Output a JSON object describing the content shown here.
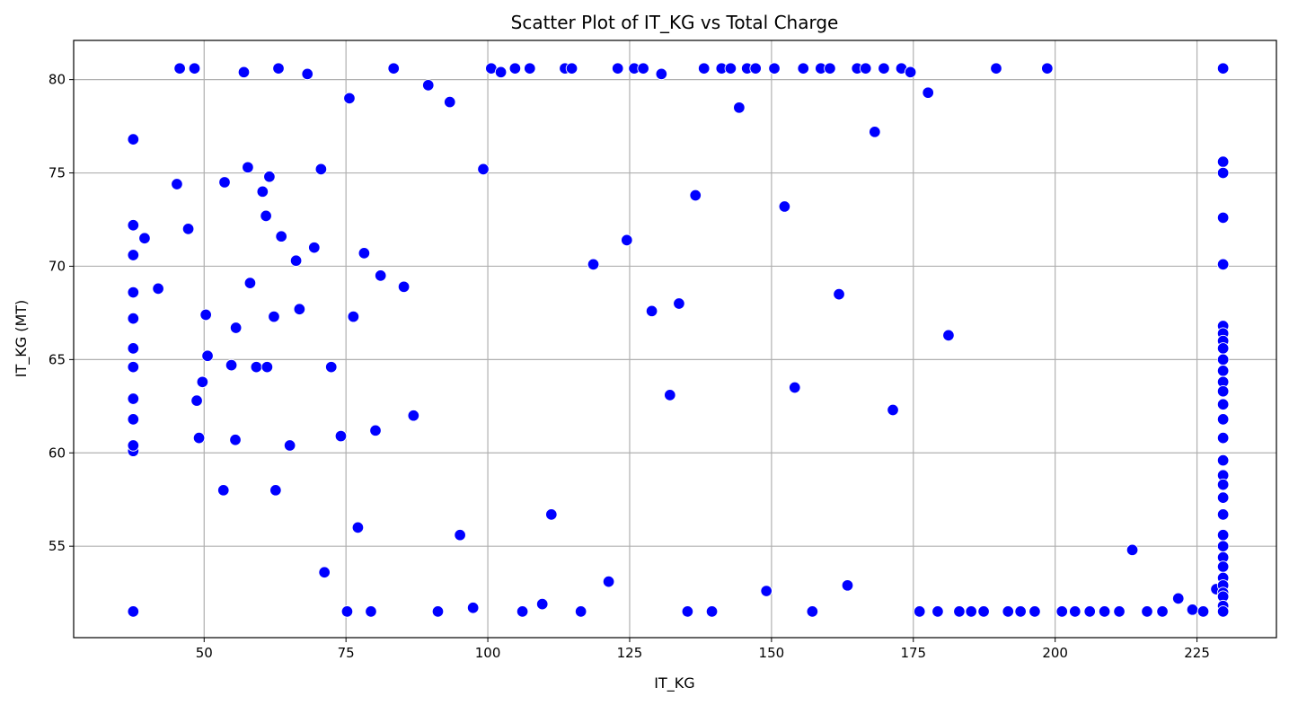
{
  "chart_data": {
    "type": "scatter",
    "title": "Scatter Plot of IT_KG vs Total Charge",
    "xlabel": "IT_KG",
    "ylabel": "IT_KG (MT)",
    "xlim": [
      27,
      239
    ],
    "ylim": [
      50.1,
      82.1
    ],
    "xticks": [
      50,
      75,
      100,
      125,
      150,
      175,
      200,
      225
    ],
    "yticks": [
      55,
      60,
      65,
      70,
      75,
      80
    ],
    "grid": true,
    "legend": "none",
    "marker_color": "#0000ff",
    "marker_edge_color": "#ffffff",
    "series": [
      {
        "x": [
          37.5,
          37.5,
          37.5,
          37.5,
          37.5,
          37.5,
          37.5,
          37.5,
          37.5,
          37.5,
          37.5,
          37.5,
          39.5,
          41.9,
          45.2,
          45.7,
          47.2,
          48.3,
          48.7,
          49.1,
          49.7,
          50.3,
          50.6,
          53.4,
          53.6,
          54.8,
          55.5,
          55.6,
          57,
          57.7,
          58.1,
          59.2,
          60.3,
          60.9,
          61.1,
          61.5,
          62.3,
          62.6,
          63.1,
          63.6,
          65.1,
          66.2,
          66.8,
          68.2,
          69.4,
          70.6,
          71.2,
          72.4,
          74.1,
          75.2,
          75.6,
          76.3,
          77.1,
          78.2,
          79.4,
          80.2,
          81.1,
          83.4,
          85.2,
          86.9,
          89.5,
          91.2,
          93.3,
          95.1,
          97.4,
          99.2,
          100.6,
          102.3,
          104.8,
          106.1,
          107.4,
          109.6,
          111.2,
          113.6,
          114.8,
          116.4,
          118.6,
          121.3,
          122.9,
          124.5,
          125.8,
          127.4,
          128.9,
          130.6,
          132.1,
          133.7,
          135.2,
          136.6,
          138.1,
          139.5,
          141.2,
          142.8,
          144.3,
          145.7,
          147.2,
          149.1,
          150.5,
          152.3,
          154.1,
          155.6,
          157.2,
          158.7,
          160.3,
          161.9,
          163.4,
          165.1,
          166.6,
          168.2,
          169.8,
          171.4,
          172.9,
          174.5,
          176.1,
          177.6,
          179.3,
          181.2,
          183.1,
          185.2,
          187.4,
          189.6,
          191.7,
          193.9,
          196.4,
          198.6,
          201.2,
          203.5,
          206.1,
          208.7,
          211.3,
          213.6,
          216.2,
          218.9,
          221.7,
          224.2,
          226.1,
          228.4,
          229.6,
          229.6,
          229.6,
          229.6,
          229.6,
          229.6,
          229.6,
          229.6,
          229.6,
          229.6,
          229.6,
          229.6,
          229.6,
          229.6,
          229.6,
          229.6,
          229.6,
          229.6,
          229.6,
          229.6,
          229.6,
          229.6,
          229.6,
          229.6,
          229.6,
          229.6,
          229.6,
          229.6,
          229.6,
          229.6,
          229.6,
          229.6
        ],
        "y": [
          51.5,
          60.1,
          60.4,
          61.8,
          62.9,
          64.6,
          65.6,
          67.2,
          68.6,
          70.6,
          72.2,
          76.8,
          71.5,
          68.8,
          74.4,
          80.6,
          72,
          80.6,
          62.8,
          60.8,
          63.8,
          67.4,
          65.2,
          58,
          74.5,
          64.7,
          60.7,
          66.7,
          80.4,
          75.3,
          69.1,
          64.6,
          74,
          72.7,
          64.6,
          74.8,
          67.3,
          58,
          80.6,
          71.6,
          60.4,
          70.3,
          67.7,
          80.3,
          71,
          75.2,
          53.6,
          64.6,
          60.9,
          51.5,
          79,
          67.3,
          56,
          70.7,
          51.5,
          61.2,
          69.5,
          80.6,
          68.9,
          62,
          79.7,
          51.5,
          78.8,
          55.6,
          51.7,
          75.2,
          80.6,
          80.4,
          80.6,
          51.5,
          80.6,
          51.9,
          56.7,
          80.6,
          80.6,
          51.5,
          70.1,
          53.1,
          80.6,
          71.4,
          80.6,
          80.6,
          67.6,
          80.3,
          63.1,
          68,
          51.5,
          73.8,
          80.6,
          51.5,
          80.6,
          80.6,
          78.5,
          80.6,
          80.6,
          52.6,
          80.6,
          73.2,
          63.5,
          80.6,
          51.5,
          80.6,
          80.6,
          68.5,
          52.9,
          80.6,
          80.6,
          77.2,
          80.6,
          62.3,
          80.6,
          80.4,
          51.5,
          79.3,
          51.5,
          66.3,
          51.5,
          51.5,
          51.5,
          80.6,
          51.5,
          51.5,
          51.5,
          80.6,
          51.5,
          51.5,
          51.5,
          51.5,
          51.5,
          54.8,
          51.5,
          51.5,
          52.2,
          51.6,
          51.5,
          52.7,
          80.6,
          75.6,
          75,
          72.6,
          70.1,
          66.8,
          66.4,
          66,
          65.6,
          65,
          64.4,
          63.8,
          63.3,
          62.6,
          61.8,
          60.8,
          59.6,
          58.8,
          57.6,
          56.7,
          55.6,
          55,
          54.4,
          53.9,
          53.3,
          52.9,
          52.5,
          52.3,
          51.8,
          51.5,
          80.6,
          58.3
        ]
      }
    ]
  }
}
